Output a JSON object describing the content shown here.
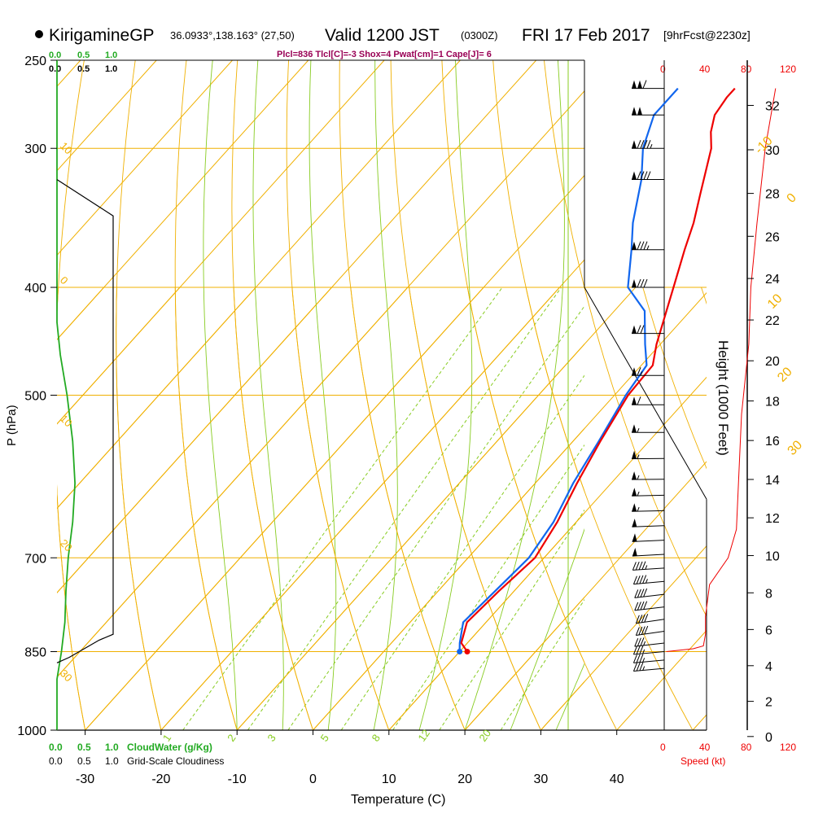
{
  "header": {
    "station": "KirigamineGP",
    "coords": "36.0933°,138.163° (27,50)",
    "valid": "Valid 1200 JST",
    "utc": "(0300Z)",
    "date": "FRI 17 Feb 2017",
    "forecast": "[9hrFcst@2230z]",
    "indices": "Plcl=836 Tlcl[C]=-3 Shox=4 Pwat[cm]=1 Cape[J]= 6"
  },
  "colors": {
    "temperature": "#ee0000",
    "dewpoint": "#1166ee",
    "isotherm": "#f0b000",
    "dry_adiabat": "#f0b000",
    "moist_adiabat": "#88cc22",
    "mixing_ratio": "#88cc22",
    "cloudwater": "#22aa22",
    "speed": "#ee0000",
    "indices": "#990055"
  },
  "cloud_scale": {
    "top_green": [
      "0.0",
      "0.5",
      "1.0"
    ],
    "top_black": [
      "0.0",
      "0.5",
      "1.0"
    ],
    "bottom_green": [
      "0.0",
      "0.5",
      "1.0"
    ],
    "bottom_black": [
      "0.0",
      "0.5",
      "1.0"
    ],
    "cloudwater_label": "CloudWater (g/Kg)",
    "cloudiness_label": "Grid-Scale Cloudiness"
  },
  "speed_scale": {
    "top": [
      "0",
      "40",
      "80",
      "120"
    ],
    "bottom": [
      "0",
      "40",
      "80",
      "120"
    ],
    "label": "Speed (kt)"
  },
  "height_axis": {
    "label": "Height (1000 Feet)",
    "ticks": [
      "0",
      "2",
      "4",
      "6",
      "8",
      "10",
      "12",
      "14",
      "16",
      "18",
      "20",
      "22",
      "24",
      "26",
      "28",
      "30",
      "32"
    ]
  },
  "chart_data": {
    "type": "line",
    "xlabel": "Temperature (C)",
    "ylabel": "P (hPa)",
    "x_ticks": [
      "-30",
      "-20",
      "-10",
      "0",
      "10",
      "20",
      "30",
      "40"
    ],
    "pressure_ticks": [
      "250",
      "300",
      "400",
      "500",
      "700",
      "850",
      "1000"
    ],
    "pressure_range": [
      250,
      1000
    ],
    "isotherm_labels": [
      "-10",
      "0",
      "10",
      "20",
      "30"
    ],
    "isotherm_label_values": [
      -10,
      0,
      10,
      20,
      30
    ],
    "dry_adiabat_labels": [
      "10",
      "0",
      "10",
      "20",
      "30"
    ],
    "mixing_ratio_labels": [
      "1",
      "2",
      "3",
      "5",
      "8",
      "12",
      "20"
    ],
    "mixing_ratio_values": [
      1,
      2,
      3,
      5,
      8,
      12,
      20
    ],
    "series": [
      {
        "name": "Temperature",
        "points": [
          [
            850,
            11
          ],
          [
            835,
            9.2
          ],
          [
            800,
            7.5
          ],
          [
            750,
            8.0
          ],
          [
            700,
            8.8
          ],
          [
            650,
            7.5
          ],
          [
            600,
            5.5
          ],
          [
            550,
            3.6
          ],
          [
            500,
            1.8
          ],
          [
            470,
            1.5
          ],
          [
            450,
            -0.5
          ],
          [
            400,
            -5.0
          ],
          [
            370,
            -8.0
          ],
          [
            350,
            -10.0
          ],
          [
            330,
            -12.5
          ],
          [
            300,
            -16.5
          ],
          [
            290,
            -18.5
          ],
          [
            280,
            -20.0
          ],
          [
            270,
            -20.5
          ],
          [
            265,
            -20.5
          ]
        ]
      },
      {
        "name": "Dewpoint",
        "points": [
          [
            850,
            10
          ],
          [
            835,
            9.0
          ],
          [
            800,
            7.0
          ],
          [
            750,
            7.5
          ],
          [
            700,
            8.0
          ],
          [
            650,
            7.0
          ],
          [
            600,
            5.0
          ],
          [
            550,
            3.4
          ],
          [
            500,
            1.5
          ],
          [
            470,
            0.7
          ],
          [
            450,
            -2.0
          ],
          [
            420,
            -6.0
          ],
          [
            400,
            -11.0
          ],
          [
            370,
            -15.0
          ],
          [
            350,
            -18.0
          ],
          [
            320,
            -22.0
          ],
          [
            300,
            -25.5
          ],
          [
            280,
            -28.0
          ],
          [
            265,
            -28.0
          ]
        ]
      },
      {
        "name": "CloudWater",
        "points": [
          [
            1000,
            0.0
          ],
          [
            900,
            0.0
          ],
          [
            850,
            0.08
          ],
          [
            800,
            0.14
          ],
          [
            750,
            0.16
          ],
          [
            700,
            0.2
          ],
          [
            650,
            0.28
          ],
          [
            600,
            0.32
          ],
          [
            550,
            0.28
          ],
          [
            500,
            0.18
          ],
          [
            460,
            0.06
          ],
          [
            430,
            0.0
          ],
          [
            250,
            0.0
          ]
        ]
      },
      {
        "name": "Grid-Scale Cloudiness",
        "points": [
          [
            870,
            0.0
          ],
          [
            860,
            0.22
          ],
          [
            830,
            0.75
          ],
          [
            820,
            1.0
          ],
          [
            345,
            1.0
          ],
          [
            320,
            0.0
          ]
        ]
      },
      {
        "name": "Speed",
        "points": [
          [
            850,
            2
          ],
          [
            845,
            28
          ],
          [
            840,
            38
          ],
          [
            820,
            40
          ],
          [
            790,
            40
          ],
          [
            740,
            44
          ],
          [
            700,
            62
          ],
          [
            660,
            70
          ],
          [
            600,
            72
          ],
          [
            520,
            75
          ],
          [
            450,
            82
          ],
          [
            400,
            84
          ],
          [
            350,
            90
          ],
          [
            300,
            98
          ],
          [
            265,
            108
          ]
        ]
      }
    ],
    "wind_barbs": [
      {
        "p": 265,
        "dir": 270,
        "kt": 110
      },
      {
        "p": 280,
        "dir": 270,
        "kt": 100
      },
      {
        "p": 300,
        "dir": 270,
        "kt": 95
      },
      {
        "p": 320,
        "dir": 270,
        "kt": 90
      },
      {
        "p": 370,
        "dir": 270,
        "kt": 85
      },
      {
        "p": 400,
        "dir": 270,
        "kt": 80
      },
      {
        "p": 440,
        "dir": 270,
        "kt": 70
      },
      {
        "p": 480,
        "dir": 270,
        "kt": 65
      },
      {
        "p": 510,
        "dir": 270,
        "kt": 60
      },
      {
        "p": 540,
        "dir": 270,
        "kt": 55
      },
      {
        "p": 570,
        "dir": 268,
        "kt": 55
      },
      {
        "p": 595,
        "dir": 268,
        "kt": 55
      },
      {
        "p": 615,
        "dir": 265,
        "kt": 55
      },
      {
        "p": 635,
        "dir": 265,
        "kt": 55
      },
      {
        "p": 655,
        "dir": 262,
        "kt": 50
      },
      {
        "p": 675,
        "dir": 260,
        "kt": 50
      },
      {
        "p": 695,
        "dir": 258,
        "kt": 50
      },
      {
        "p": 715,
        "dir": 255,
        "kt": 45
      },
      {
        "p": 735,
        "dir": 250,
        "kt": 45
      },
      {
        "p": 755,
        "dir": 245,
        "kt": 40
      },
      {
        "p": 775,
        "dir": 245,
        "kt": 40
      },
      {
        "p": 795,
        "dir": 240,
        "kt": 40
      },
      {
        "p": 815,
        "dir": 240,
        "kt": 40
      },
      {
        "p": 835,
        "dir": 245,
        "kt": 35
      },
      {
        "p": 850,
        "dir": 250,
        "kt": 35
      },
      {
        "p": 865,
        "dir": 250,
        "kt": 35
      },
      {
        "p": 880,
        "dir": 250,
        "kt": 35
      }
    ]
  }
}
